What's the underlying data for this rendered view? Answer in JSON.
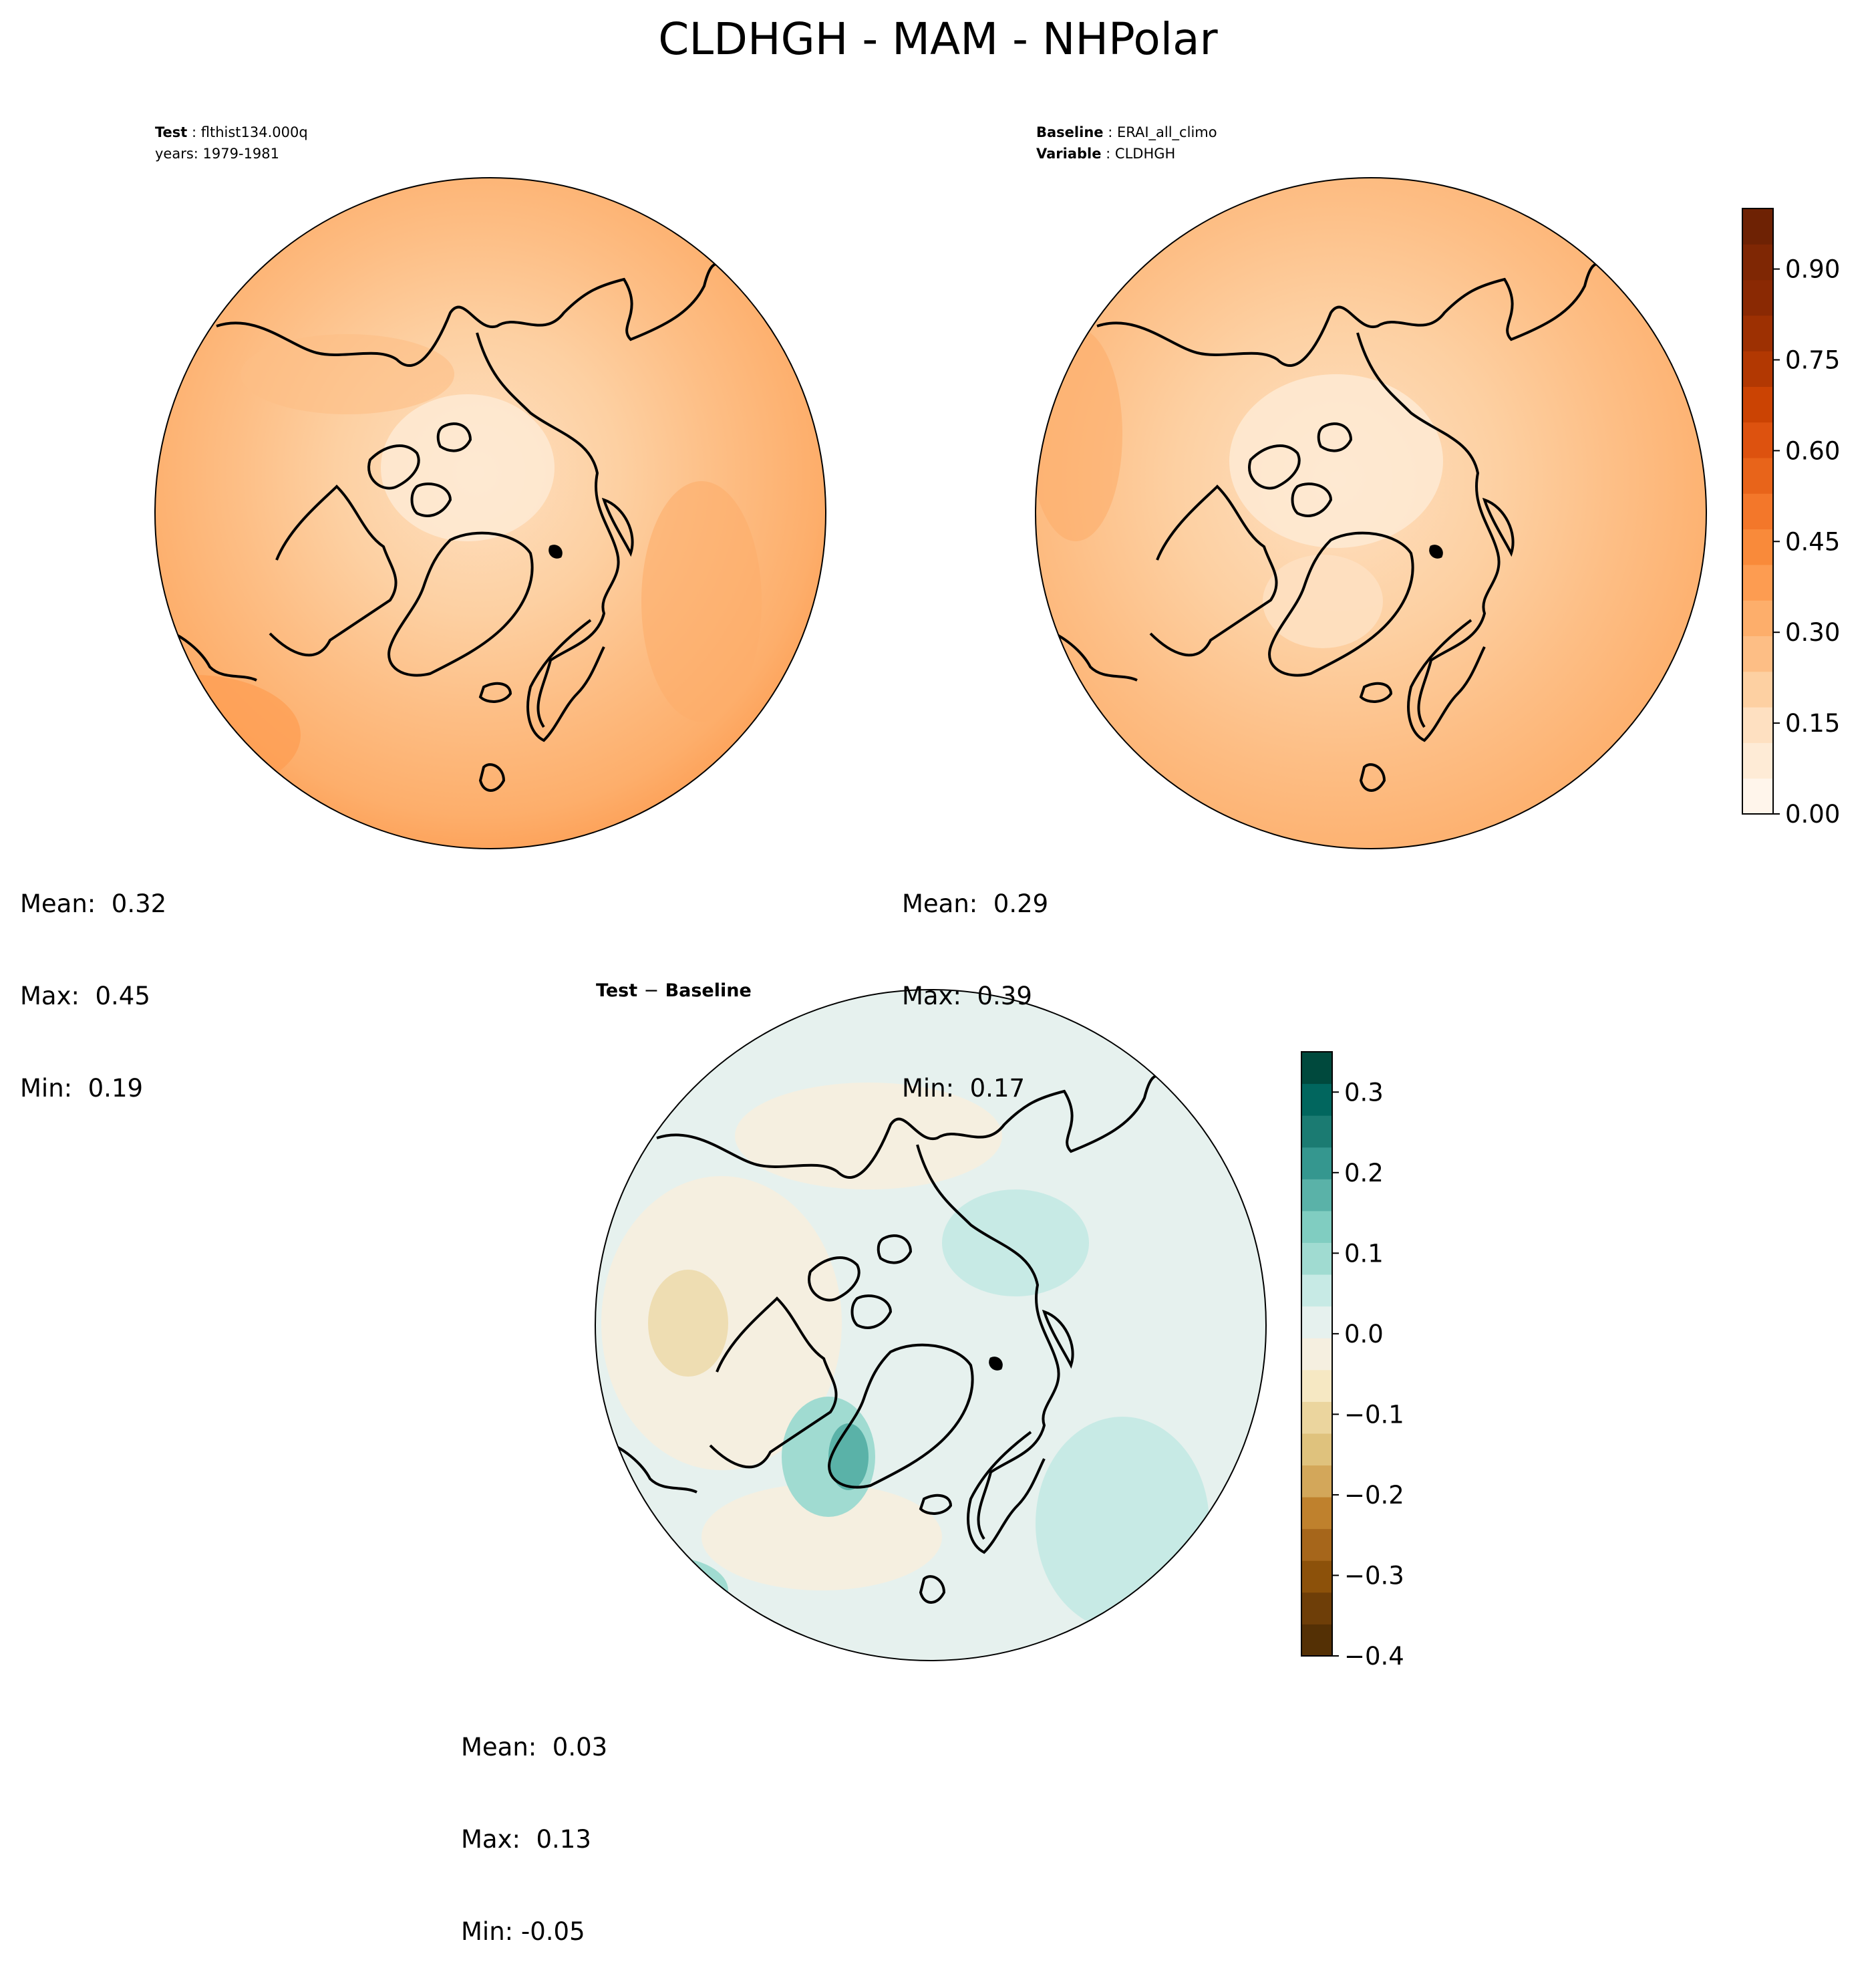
{
  "title": "CLDHGH - MAM - NHPolar",
  "test_panel": {
    "label_key": "Test",
    "name": "flthist134.000q",
    "years": "years: 1979-1981",
    "stats": {
      "mean": "Mean:  0.32",
      "max": "Max:  0.45",
      "min": "Min:  0.19"
    }
  },
  "baseline_panel": {
    "label_key": "Baseline",
    "name": "ERAI_all_climo",
    "variable_key": "Variable",
    "variable": "CLDHGH",
    "stats": {
      "mean": "Mean:  0.29",
      "max": "Max:  0.39",
      "min": "Min:  0.17"
    }
  },
  "diff_panel": {
    "title_a": "Test",
    "title_sep": "−",
    "title_b": "Baseline",
    "stats": {
      "mean": "Mean:  0.03",
      "max": "Max:  0.13",
      "min": "Min: -0.05"
    }
  },
  "colorbars": {
    "main": {
      "ticks": [
        "0.90",
        "0.75",
        "0.60",
        "0.45",
        "0.30",
        "0.15",
        "0.00"
      ],
      "tick_values": [
        0.9,
        0.75,
        0.6,
        0.45,
        0.3,
        0.15,
        0.0
      ],
      "range": [
        0.0,
        1.0
      ],
      "colors": [
        "#fff5eb",
        "#feebd6",
        "#fee0c1",
        "#fdd0a2",
        "#fdbe85",
        "#fdae6b",
        "#fd9c51",
        "#f98a3a",
        "#f3772a",
        "#e8641a",
        "#dd520f",
        "#cb4303",
        "#b23802",
        "#9d3002",
        "#8a2903",
        "#7f2704",
        "#6e2204"
      ]
    },
    "diff": {
      "ticks": [
        "0.3",
        "0.2",
        "0.1",
        "0.0",
        "−0.1",
        "−0.2",
        "−0.3",
        "−0.4"
      ],
      "tick_values": [
        0.3,
        0.2,
        0.1,
        0.0,
        -0.1,
        -0.2,
        -0.3,
        -0.4
      ],
      "range": [
        -0.4,
        0.35
      ],
      "colors": [
        "#543005",
        "#6e3e08",
        "#8c510a",
        "#a6661b",
        "#bf812d",
        "#d3a75a",
        "#dfc27d",
        "#ebd59e",
        "#f6e8c3",
        "#f5efe0",
        "#e6f1ee",
        "#c7eae5",
        "#a0dbd1",
        "#80cdc1",
        "#5ab2a8",
        "#35978f",
        "#1b7b72",
        "#01665e",
        "#00493d"
      ]
    }
  }
}
